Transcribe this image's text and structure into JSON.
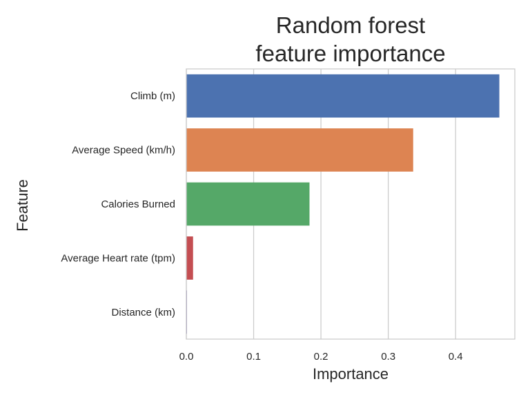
{
  "chart_data": {
    "type": "bar",
    "orientation": "horizontal",
    "title": [
      "Random forest",
      "feature importance"
    ],
    "xlabel": "Importance",
    "ylabel": "Feature",
    "categories": [
      "Climb (m)",
      "Average Speed (km/h)",
      "Calories Burned",
      "Average Heart rate (tpm)",
      "Distance (km)"
    ],
    "values": [
      0.465,
      0.337,
      0.183,
      0.01,
      0.001
    ],
    "colors": [
      "#4c72b0",
      "#dd8452",
      "#55a868",
      "#c44e52",
      "#8172b3"
    ],
    "xlim": [
      0,
      0.488
    ],
    "xticks": [
      "0.0",
      "0.1",
      "0.2",
      "0.3",
      "0.4"
    ],
    "xtick_values": [
      0.0,
      0.1,
      0.2,
      0.3,
      0.4
    ],
    "grid": "vertical",
    "style": "whitegrid"
  }
}
